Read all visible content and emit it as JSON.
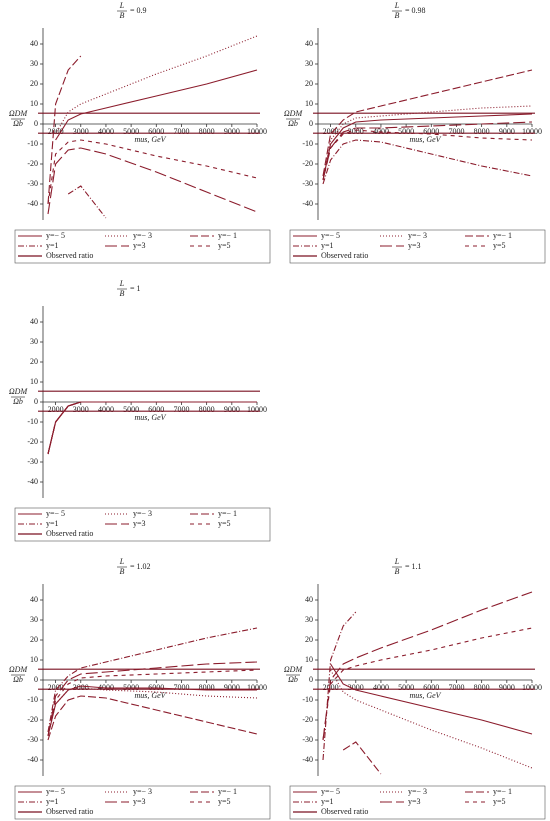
{
  "chart_data": [
    {
      "type": "line",
      "title": {
        "numerator": "L",
        "denominator": "B",
        "text": "= 0.9"
      },
      "y_label": {
        "numerator": "ΩDM",
        "denominator": "Ωb"
      },
      "x_label": "mus, GeV",
      "x": [
        1700,
        2000,
        2500,
        3000,
        4000,
        6000,
        8000,
        10000
      ],
      "xlim": [
        1500,
        10000
      ],
      "ylim": [
        -48,
        48
      ],
      "xticks": [
        2000,
        3000,
        4000,
        5000,
        6000,
        7000,
        8000,
        9000,
        10000
      ],
      "yticks": [
        -40,
        -30,
        -20,
        -10,
        0,
        10,
        20,
        30,
        40
      ],
      "series": [
        {
          "name": "y=− 5",
          "color": "#8b1c2c",
          "dash": "solid",
          "values": [
            null,
            -8,
            2,
            5,
            8,
            14,
            20,
            27
          ]
        },
        {
          "name": "y=− 3",
          "color": "#8b1c2c",
          "dash": "dot",
          "values": [
            null,
            -5,
            6,
            10,
            15,
            25,
            34,
            44
          ]
        },
        {
          "name": "y=− 1",
          "color": "#8b1c2c",
          "dash": "dash",
          "values": [
            -40,
            10,
            27,
            34,
            null,
            null,
            null,
            null
          ]
        },
        {
          "name": "y=1",
          "color": "#8b1c2c",
          "dash": "dashdot",
          "values": [
            null,
            null,
            -35,
            -31,
            -47,
            null,
            null,
            null
          ]
        },
        {
          "name": "y=3",
          "color": "#8b1c2c",
          "dash": "longdash",
          "values": [
            -45,
            -20,
            -13,
            -12,
            -15,
            -24,
            -34,
            -44
          ]
        },
        {
          "name": "y=5",
          "color": "#8b1c2c",
          "dash": "spaced",
          "values": [
            -40,
            -15,
            -9,
            -8,
            -10,
            -16,
            -21,
            -27
          ]
        }
      ],
      "observed": {
        "name": "Observed ratio",
        "color": "#7a1020",
        "levels": [
          5.4,
          -4.6
        ]
      }
    },
    {
      "type": "line",
      "title": {
        "numerator": "L",
        "denominator": "B",
        "text": "= 0.98"
      },
      "y_label": {
        "numerator": "ΩDM",
        "denominator": "Ωb"
      },
      "x_label": "mus, GeV",
      "x": [
        1700,
        2000,
        2500,
        3000,
        4000,
        6000,
        8000,
        10000
      ],
      "xlim": [
        1500,
        10000
      ],
      "ylim": [
        -48,
        48
      ],
      "xticks": [
        2000,
        3000,
        4000,
        5000,
        6000,
        7000,
        8000,
        9000,
        10000
      ],
      "yticks": [
        -40,
        -30,
        -20,
        -10,
        0,
        10,
        20,
        30,
        40
      ],
      "series": [
        {
          "name": "y=− 5",
          "color": "#8b1c2c",
          "dash": "solid",
          "values": [
            -28,
            -10,
            -2,
            1,
            2,
            3,
            4,
            5
          ]
        },
        {
          "name": "y=− 3",
          "color": "#8b1c2c",
          "dash": "dot",
          "values": [
            -28,
            -8,
            0,
            3,
            4,
            6,
            8,
            9
          ]
        },
        {
          "name": "y=− 1",
          "color": "#8b1c2c",
          "dash": "dash",
          "values": [
            -26,
            -5,
            2,
            6,
            9,
            15,
            21,
            27
          ]
        },
        {
          "name": "y=1",
          "color": "#8b1c2c",
          "dash": "dashdot",
          "values": [
            -30,
            -18,
            -10,
            -8,
            -9,
            -15,
            -21,
            -26
          ]
        },
        {
          "name": "y=3",
          "color": "#8b1c2c",
          "dash": "longdash",
          "values": [
            -28,
            -12,
            -4,
            -2,
            -2,
            -1,
            0,
            1
          ]
        },
        {
          "name": "y=5",
          "color": "#8b1c2c",
          "dash": "spaced",
          "values": [
            -28,
            -12,
            -5,
            -3,
            -4,
            -5,
            -7,
            -8
          ]
        }
      ],
      "observed": {
        "name": "Observed ratio",
        "color": "#7a1020",
        "levels": [
          5.4,
          -4.6
        ]
      }
    },
    {
      "type": "line",
      "title": {
        "numerator": "L",
        "denominator": "B",
        "text": "= 1"
      },
      "y_label": {
        "numerator": "ΩDM",
        "denominator": "Ωb"
      },
      "x_label": "mus, GeV",
      "x": [
        1700,
        2000,
        2500,
        3000,
        4000,
        6000,
        8000,
        10000
      ],
      "xlim": [
        1500,
        10000
      ],
      "ylim": [
        -48,
        48
      ],
      "xticks": [
        2000,
        3000,
        4000,
        5000,
        6000,
        7000,
        8000,
        9000,
        10000
      ],
      "yticks": [
        -40,
        -30,
        -20,
        -10,
        0,
        10,
        20,
        30,
        40
      ],
      "series": [
        {
          "name": "y=− 5",
          "color": "#8b1c2c",
          "dash": "solid",
          "values": [
            -26,
            -10,
            -2,
            0,
            0,
            0,
            0,
            0
          ]
        },
        {
          "name": "y=− 3",
          "color": "#8b1c2c",
          "dash": "dot",
          "values": [
            -26,
            -10,
            -2,
            0,
            0,
            0,
            0,
            0
          ]
        },
        {
          "name": "y=− 1",
          "color": "#8b1c2c",
          "dash": "dash",
          "values": [
            -26,
            -10,
            -2,
            0,
            0,
            0,
            0,
            0
          ]
        },
        {
          "name": "y=1",
          "color": "#8b1c2c",
          "dash": "dashdot",
          "values": [
            -26,
            -10,
            -2,
            0,
            0,
            0,
            0,
            0
          ]
        },
        {
          "name": "y=3",
          "color": "#8b1c2c",
          "dash": "longdash",
          "values": [
            -26,
            -10,
            -2,
            0,
            0,
            0,
            0,
            0
          ]
        },
        {
          "name": "y=5",
          "color": "#8b1c2c",
          "dash": "spaced",
          "values": [
            -26,
            -10,
            -2,
            0,
            0,
            0,
            0,
            0
          ]
        }
      ],
      "observed": {
        "name": "Observed ratio",
        "color": "#7a1020",
        "levels": [
          5.4,
          -4.6
        ]
      }
    },
    {
      "type": "line",
      "title": {
        "numerator": "L",
        "denominator": "B",
        "text": "= 1.02"
      },
      "y_label": {
        "numerator": "ΩDM",
        "denominator": "Ωb"
      },
      "x_label": "mus, GeV",
      "x": [
        1700,
        2000,
        2500,
        3000,
        4000,
        6000,
        8000,
        10000
      ],
      "xlim": [
        1500,
        10000
      ],
      "ylim": [
        -48,
        48
      ],
      "xticks": [
        2000,
        3000,
        4000,
        5000,
        6000,
        7000,
        8000,
        9000,
        10000
      ],
      "yticks": [
        -40,
        -30,
        -20,
        -10,
        0,
        10,
        20,
        30,
        40
      ],
      "series": [
        {
          "name": "y=− 5",
          "color": "#8b1c2c",
          "dash": "solid",
          "values": [
            -28,
            -12,
            -5,
            -3,
            -4,
            -4,
            -5,
            -5
          ]
        },
        {
          "name": "y=− 3",
          "color": "#8b1c2c",
          "dash": "dot",
          "values": [
            -28,
            -12,
            -5,
            -4,
            -5,
            -6,
            -8,
            -9
          ]
        },
        {
          "name": "y=− 1",
          "color": "#8b1c2c",
          "dash": "dash",
          "values": [
            -30,
            -18,
            -10,
            -8,
            -9,
            -15,
            -21,
            -27
          ]
        },
        {
          "name": "y=1",
          "color": "#8b1c2c",
          "dash": "dashdot",
          "values": [
            -26,
            -5,
            2,
            6,
            9,
            15,
            21,
            26
          ]
        },
        {
          "name": "y=3",
          "color": "#8b1c2c",
          "dash": "longdash",
          "values": [
            -28,
            -8,
            0,
            3,
            4,
            6,
            8,
            9
          ]
        },
        {
          "name": "y=5",
          "color": "#8b1c2c",
          "dash": "spaced",
          "values": [
            -28,
            -10,
            -2,
            1,
            2,
            3,
            4,
            5
          ]
        }
      ],
      "observed": {
        "name": "Observed ratio",
        "color": "#7a1020",
        "levels": [
          5.4,
          -4.6
        ]
      }
    },
    {
      "type": "line",
      "title": {
        "numerator": "L",
        "denominator": "B",
        "text": "= 1.1"
      },
      "y_label": {
        "numerator": "ΩDM",
        "denominator": "Ωb"
      },
      "x_label": "mus, GeV",
      "x": [
        1700,
        2000,
        2500,
        3000,
        4000,
        6000,
        8000,
        10000
      ],
      "xlim": [
        1500,
        10000
      ],
      "ylim": [
        -48,
        48
      ],
      "xticks": [
        2000,
        3000,
        4000,
        5000,
        6000,
        7000,
        8000,
        9000,
        10000
      ],
      "yticks": [
        -40,
        -30,
        -20,
        -10,
        0,
        10,
        20,
        30,
        40
      ],
      "series": [
        {
          "name": "y=− 5",
          "color": "#8b1c2c",
          "dash": "solid",
          "values": [
            null,
            8,
            -2,
            -5,
            -8,
            -14,
            -20,
            -27
          ]
        },
        {
          "name": "y=− 3",
          "color": "#8b1c2c",
          "dash": "dot",
          "values": [
            null,
            5,
            -6,
            -10,
            -15,
            -25,
            -34,
            -44
          ]
        },
        {
          "name": "y=− 1",
          "color": "#8b1c2c",
          "dash": "dash",
          "values": [
            null,
            null,
            -35,
            -31,
            -47,
            null,
            null,
            null
          ]
        },
        {
          "name": "y=1",
          "color": "#8b1c2c",
          "dash": "dashdot",
          "values": [
            -40,
            10,
            27,
            34,
            null,
            null,
            null,
            null
          ]
        },
        {
          "name": "y=3",
          "color": "#8b1c2c",
          "dash": "longdash",
          "values": [
            -30,
            0,
            8,
            11,
            16,
            25,
            35,
            44
          ]
        },
        {
          "name": "y=5",
          "color": "#8b1c2c",
          "dash": "spaced",
          "values": [
            -30,
            -2,
            5,
            7,
            10,
            15,
            21,
            26
          ]
        }
      ],
      "observed": {
        "name": "Observed ratio",
        "color": "#7a1020",
        "levels": [
          5.4,
          -4.6
        ]
      }
    }
  ]
}
